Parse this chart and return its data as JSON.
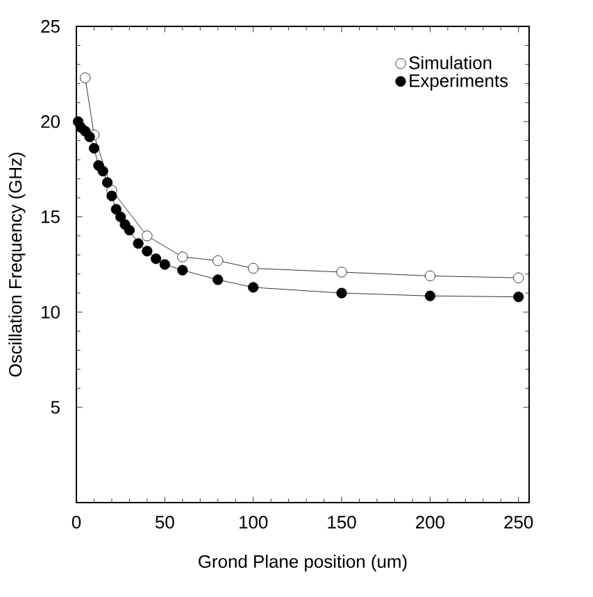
{
  "chart_data": {
    "type": "line",
    "xlabel": "Grond Plane position (um)",
    "ylabel": "Oscillation Frequency (GHz)",
    "xlim": [
      0,
      256
    ],
    "ylim": [
      0,
      25
    ],
    "xticks": [
      0,
      50,
      100,
      150,
      200,
      250
    ],
    "yticks": [
      5,
      10,
      15,
      20,
      25
    ],
    "legend": "top right",
    "grid": false,
    "series": [
      {
        "name": "Simulation",
        "color": "#000000",
        "marker": "circle",
        "x": [
          5,
          10,
          20,
          40,
          60,
          80,
          100,
          150,
          200,
          250
        ],
        "values": [
          22.3,
          19.3,
          16.4,
          14.0,
          12.9,
          12.7,
          12.3,
          12.1,
          11.9,
          11.8
        ]
      },
      {
        "name": "Experiments",
        "color": "#000000",
        "marker": "circle",
        "x": [
          1,
          2.5,
          5,
          7.5,
          10,
          12.5,
          15,
          17.5,
          20,
          22.5,
          25,
          27.5,
          30,
          35,
          40,
          45,
          50,
          60,
          80,
          100,
          150,
          200,
          250
        ],
        "values": [
          20.0,
          19.7,
          19.5,
          19.2,
          18.6,
          17.7,
          17.4,
          16.8,
          16.1,
          15.4,
          15.0,
          14.6,
          14.3,
          13.6,
          13.2,
          12.8,
          12.5,
          12.2,
          11.7,
          11.3,
          11.0,
          10.85,
          10.8
        ]
      }
    ]
  }
}
